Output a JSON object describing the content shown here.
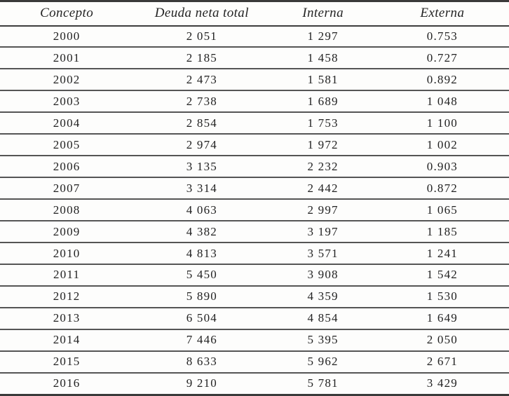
{
  "table": {
    "columns": [
      "Concepto",
      "Deuda neta total",
      "Interna",
      "Externa"
    ],
    "rows": [
      [
        "2000",
        "2 051",
        "1 297",
        "0.753"
      ],
      [
        "2001",
        "2 185",
        "1 458",
        "0.727"
      ],
      [
        "2002",
        "2 473",
        "1 581",
        "0.892"
      ],
      [
        "2003",
        "2 738",
        "1 689",
        "1 048"
      ],
      [
        "2004",
        "2 854",
        "1 753",
        "1 100"
      ],
      [
        "2005",
        "2 974",
        "1 972",
        "1 002"
      ],
      [
        "2006",
        "3 135",
        "2 232",
        "0.903"
      ],
      [
        "2007",
        "3 314",
        "2 442",
        "0.872"
      ],
      [
        "2008",
        "4 063",
        "2 997",
        "1 065"
      ],
      [
        "2009",
        "4 382",
        "3 197",
        "1 185"
      ],
      [
        "2010",
        "4 813",
        "3 571",
        "1 241"
      ],
      [
        "2011",
        "5 450",
        "3 908",
        "1 542"
      ],
      [
        "2012",
        "5 890",
        "4 359",
        "1 530"
      ],
      [
        "2013",
        "6 504",
        "4 854",
        "1 649"
      ],
      [
        "2014",
        "7 446",
        "5 395",
        "2 050"
      ],
      [
        "2015",
        "8 633",
        "5 962",
        "2 671"
      ],
      [
        "2016",
        "9 210",
        "5 781",
        "3 429"
      ]
    ]
  },
  "chart_data": {
    "type": "table",
    "title": "",
    "columns": [
      "Concepto",
      "Deuda neta total",
      "Interna",
      "Externa"
    ],
    "rows": [
      [
        "2000",
        "2 051",
        "1 297",
        "0.753"
      ],
      [
        "2001",
        "2 185",
        "1 458",
        "0.727"
      ],
      [
        "2002",
        "2 473",
        "1 581",
        "0.892"
      ],
      [
        "2003",
        "2 738",
        "1 689",
        "1 048"
      ],
      [
        "2004",
        "2 854",
        "1 753",
        "1 100"
      ],
      [
        "2005",
        "2 974",
        "1 972",
        "1 002"
      ],
      [
        "2006",
        "3 135",
        "2 232",
        "0.903"
      ],
      [
        "2007",
        "3 314",
        "2 442",
        "0.872"
      ],
      [
        "2008",
        "4 063",
        "2 997",
        "1 065"
      ],
      [
        "2009",
        "4 382",
        "3 197",
        "1 185"
      ],
      [
        "2010",
        "4 813",
        "3 571",
        "1 241"
      ],
      [
        "2011",
        "5 450",
        "3 908",
        "1 542"
      ],
      [
        "2012",
        "5 890",
        "4 359",
        "1 530"
      ],
      [
        "2013",
        "6 504",
        "4 854",
        "1 649"
      ],
      [
        "2014",
        "7 446",
        "5 395",
        "2 050"
      ],
      [
        "2015",
        "8 633",
        "5 962",
        "2 671"
      ],
      [
        "2016",
        "9 210",
        "5 781",
        "3 429"
      ]
    ]
  },
  "colors": {
    "rule_dark": "#3a3a3a",
    "rule_gray": "#555555",
    "text": "#222222",
    "background": "#fdfdfc"
  }
}
